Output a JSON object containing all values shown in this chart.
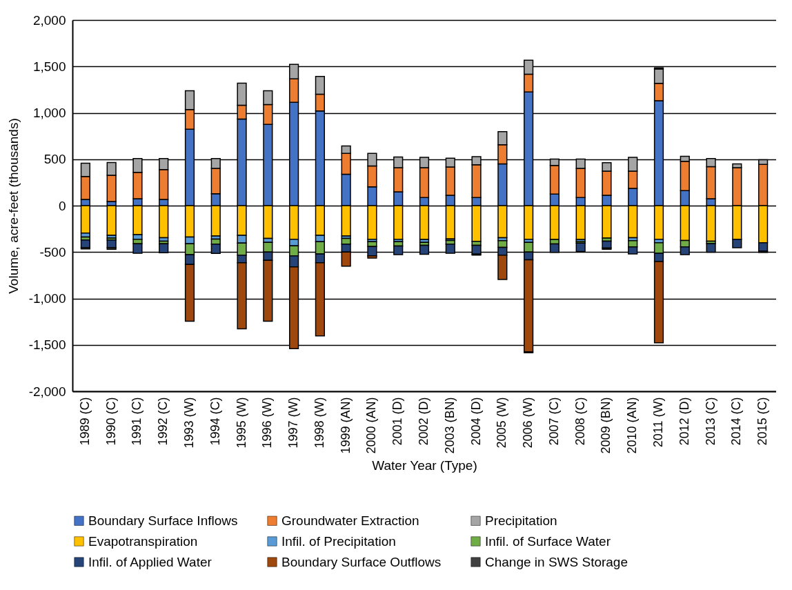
{
  "chart_data": {
    "type": "bar",
    "stacked": true,
    "xlabel": "Water Year (Type)",
    "ylabel": "Volume, acre-feet (thousands)",
    "ylim": [
      -2000,
      2000
    ],
    "yticks": [
      {
        "value": -2000,
        "label": "-2,000"
      },
      {
        "value": -1500,
        "label": "-1,500"
      },
      {
        "value": -1000,
        "label": "-1,000"
      },
      {
        "value": -500,
        "label": "-500"
      },
      {
        "value": 0,
        "label": "0"
      },
      {
        "value": 500,
        "label": "500"
      },
      {
        "value": 1000,
        "label": "1,000"
      },
      {
        "value": 1500,
        "label": "1,500"
      },
      {
        "value": 2000,
        "label": "2,000"
      }
    ],
    "grid": "y",
    "legend": "bottom",
    "categories": [
      "1989 (C)",
      "1990 (C)",
      "1991 (C)",
      "1992 (C)",
      "1993 (W)",
      "1994 (C)",
      "1995 (W)",
      "1996 (W)",
      "1997 (W)",
      "1998 (W)",
      "1999 (AN)",
      "2000 (AN)",
      "2001 (D)",
      "2002 (D)",
      "2003 (BN)",
      "2004 (D)",
      "2005 (W)",
      "2006 (W)",
      "2007 (C)",
      "2008 (C)",
      "2009 (BN)",
      "2010 (AN)",
      "2011 (W)",
      "2012 (D)",
      "2013 (C)",
      "2014 (C)",
      "2015 (C)"
    ],
    "series": [
      {
        "name": "Boundary Surface Inflows",
        "color": "#4472c4",
        "values": [
          67,
          45,
          74,
          67,
          824,
          129,
          933,
          876,
          1114,
          1020,
          339,
          203,
          148,
          87,
          111,
          87,
          450,
          1225,
          124,
          87,
          111,
          186,
          1131,
          161,
          74,
          null,
          null
        ]
      },
      {
        "name": "Groundwater Extraction",
        "color": "#ed7d31",
        "values": [
          247,
          282,
          285,
          322,
          211,
          272,
          149,
          213,
          252,
          180,
          225,
          225,
          260,
          321,
          305,
          354,
          206,
          191,
          309,
          314,
          260,
          185,
          186,
          317,
          347,
          408,
          445
        ]
      },
      {
        "name": "Precipitation",
        "color": "#a5a5a5",
        "values": [
          144,
          138,
          148,
          118,
          203,
          106,
          237,
          149,
          156,
          193,
          80,
          136,
          117,
          112,
          96,
          86,
          141,
          151,
          69,
          101,
          92,
          149,
          156,
          54,
          86,
          42,
          50
        ]
      },
      {
        "name": "Evapotranspiration",
        "color": "#ffc000",
        "values": [
          -295,
          -320,
          -313,
          -345,
          -338,
          -328,
          -320,
          -353,
          -363,
          -320,
          -328,
          -363,
          -363,
          -365,
          -358,
          -385,
          -345,
          -363,
          -365,
          -365,
          -350,
          -345,
          -363,
          -375,
          -383,
          -363,
          -400
        ]
      },
      {
        "name": "Infil. of Precipitation",
        "color": "#5b9bd5",
        "values": [
          -43,
          -30,
          -50,
          -38,
          -72,
          -32,
          -83,
          -42,
          -70,
          -68,
          -25,
          -25,
          -25,
          -30,
          -17,
          null,
          -33,
          -32,
          null,
          -20,
          null,
          -33,
          -37,
          null,
          null,
          null,
          null
        ]
      },
      {
        "name": "Infil. of Surface Water",
        "color": "#70ad47",
        "values": [
          -32,
          -20,
          -47,
          -27,
          -118,
          -55,
          -130,
          -105,
          -107,
          -132,
          -62,
          -52,
          -47,
          -33,
          -40,
          -43,
          -72,
          -105,
          -48,
          -18,
          -33,
          -67,
          -113,
          -70,
          -25,
          null,
          null
        ]
      },
      {
        "name": "Infil. of Applied Water",
        "color": "#264478",
        "values": [
          -82,
          -82,
          -103,
          -98,
          -105,
          -100,
          -82,
          -90,
          -120,
          -95,
          -85,
          -100,
          -93,
          -97,
          -98,
          -95,
          -83,
          -83,
          -90,
          -92,
          -75,
          -75,
          -90,
          -83,
          -93,
          -90,
          -91
        ]
      },
      {
        "name": "Boundary Surface Outflows",
        "color": "#9e480e",
        "values": [
          null,
          null,
          null,
          null,
          -612,
          null,
          -713,
          -655,
          -880,
          -788,
          -153,
          -25,
          null,
          null,
          null,
          null,
          -262,
          -992,
          null,
          null,
          null,
          null,
          -875,
          null,
          null,
          null,
          null
        ]
      },
      {
        "name": "Change in SWS Storage",
        "color": "#404040",
        "values": [
          -15,
          -18,
          null,
          null,
          null,
          null,
          null,
          null,
          null,
          null,
          null,
          null,
          null,
          null,
          null,
          -10,
          null,
          -10,
          null,
          null,
          -12,
          null,
          12,
          null,
          null,
          null,
          -12
        ]
      }
    ]
  }
}
